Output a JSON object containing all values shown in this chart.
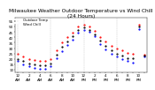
{
  "title": "Milwaukee Weather Outdoor Temperature vs Wind Chill (24 Hours)",
  "hours": [
    0,
    1,
    2,
    3,
    4,
    5,
    6,
    7,
    8,
    9,
    10,
    11,
    12,
    13,
    14,
    15,
    16,
    17,
    18,
    19,
    20,
    21,
    22,
    23
  ],
  "temp": [
    25,
    22,
    20,
    19,
    18,
    18,
    20,
    28,
    35,
    40,
    44,
    50,
    52,
    50,
    46,
    40,
    36,
    32,
    30,
    28,
    26,
    25,
    52,
    24
  ],
  "wind_chill": [
    18,
    15,
    13,
    12,
    11,
    11,
    13,
    21,
    27,
    33,
    38,
    44,
    47,
    45,
    41,
    34,
    29,
    25,
    22,
    20,
    18,
    17,
    48,
    22
  ],
  "black_data": [
    20,
    18,
    16,
    15,
    14,
    14,
    16,
    24,
    31,
    36,
    41,
    47,
    49,
    47,
    43,
    37,
    32,
    28,
    25,
    23,
    21,
    21,
    50,
    23
  ],
  "temp_color": "#ff0000",
  "wind_chill_color": "#0000ff",
  "black_color": "#000000",
  "ylim_min": 8,
  "ylim_max": 58,
  "background": "#ffffff",
  "grid_color": "#aaaaaa",
  "title_fontsize": 4.2,
  "tick_fontsize": 3.0,
  "legend_fontsize": 2.8,
  "legend_labels": [
    "Outdoor Temp",
    "Wind Chill"
  ]
}
